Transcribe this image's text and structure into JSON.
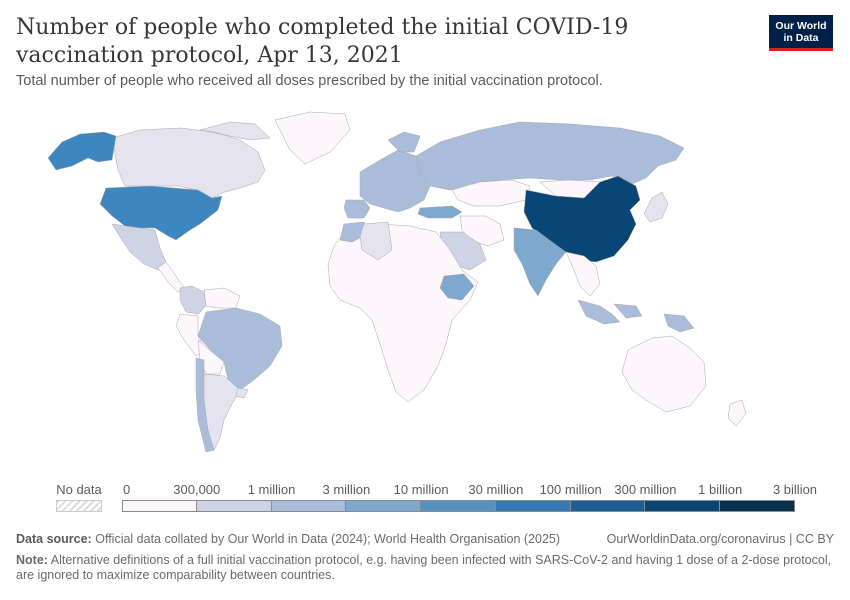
{
  "header": {
    "title": "Number of people who completed the initial COVID-19 vaccination protocol, Apr 13, 2021",
    "subtitle": "Total number of people who received all doses prescribed by the initial vaccination protocol.",
    "logo_line1": "Our World",
    "logo_line2": "in Data"
  },
  "legend": {
    "no_data_label": "No data",
    "bins": [
      {
        "label": "0",
        "color": "#fdf7fb"
      },
      {
        "label": "300,000",
        "color": "#e5e3f0"
      },
      {
        "label": "1 million",
        "color": "#cfd3e6"
      },
      {
        "label": "3 million",
        "color": "#a9bddb"
      },
      {
        "label": "10 million",
        "color": "#7ea8ce"
      },
      {
        "label": "30 million",
        "color": "#5592c3"
      },
      {
        "label": "100 million",
        "color": "#3479b3"
      },
      {
        "label": "300 million",
        "color": "#1c5d95"
      },
      {
        "label": "1 billion",
        "color": "#0a4675"
      },
      {
        "label": "3 billion",
        "color": ""
      }
    ],
    "last_bin_color": "#08314f"
  },
  "map_regions": [
    {
      "name": "Canada",
      "color": "#e5e3f0"
    },
    {
      "name": "Alaska (United States)",
      "color": "#3d86bf"
    },
    {
      "name": "United States",
      "color": "#3d86bf"
    },
    {
      "name": "Mexico",
      "color": "#cfd3e6"
    },
    {
      "name": "Greenland",
      "color": "#fdf7fb"
    },
    {
      "name": "Central America",
      "color": "#fdf7fb"
    },
    {
      "name": "Colombia",
      "color": "#cfd3e6"
    },
    {
      "name": "Venezuela",
      "color": "#fdf7fb"
    },
    {
      "name": "Brazil",
      "color": "#a9bddb"
    },
    {
      "name": "Peru",
      "color": "#fdf7fb"
    },
    {
      "name": "Bolivia",
      "color": "#fdf7fb"
    },
    {
      "name": "Chile",
      "color": "#a9bddb"
    },
    {
      "name": "Argentina",
      "color": "#e5e3f0"
    },
    {
      "name": "Uruguay",
      "color": "#e5e3f0"
    },
    {
      "name": "Western Europe",
      "color": "#a9bddb"
    },
    {
      "name": "Spain",
      "color": "#a9bddb"
    },
    {
      "name": "Turkey",
      "color": "#7ea8ce"
    },
    {
      "name": "Russia",
      "color": "#a9bddb"
    },
    {
      "name": "Kazakhstan",
      "color": "#fdf7fb"
    },
    {
      "name": "Mongolia",
      "color": "#fdf7fb"
    },
    {
      "name": "China",
      "color": "#0a4675"
    },
    {
      "name": "India",
      "color": "#7ea8ce"
    },
    {
      "name": "Saudi Arabia",
      "color": "#cfd3e6"
    },
    {
      "name": "Iran",
      "color": "#fdf7fb"
    },
    {
      "name": "Japan",
      "color": "#e5e3f0"
    },
    {
      "name": "Indonesia",
      "color": "#a9bddb"
    },
    {
      "name": "Papua New Guinea",
      "color": "#a9bddb"
    },
    {
      "name": "Africa",
      "color": "#fdf7fb"
    },
    {
      "name": "Morocco",
      "color": "#a9bddb"
    },
    {
      "name": "Algeria",
      "color": "#e5e3f0"
    },
    {
      "name": "Ethiopia",
      "color": "#7ea8ce"
    },
    {
      "name": "Australia",
      "color": "#fdf7fb"
    },
    {
      "name": "New Zealand",
      "color": "#fdf7fb"
    },
    {
      "name": "Southeast Asia",
      "color": "#fdf7fb"
    }
  ],
  "footer": {
    "source_label": "Data source:",
    "source_text": "Official data collated by Our World in Data (2024); World Health Organisation (2025)",
    "url_text": "OurWorldinData.org/coronavirus | CC BY",
    "note_label": "Note:",
    "note_text": "Alternative definitions of a full initial vaccination protocol, e.g. having been infected with SARS-CoV-2 and having 1 dose of a 2-dose protocol, are ignored to maximize comparability between countries."
  }
}
